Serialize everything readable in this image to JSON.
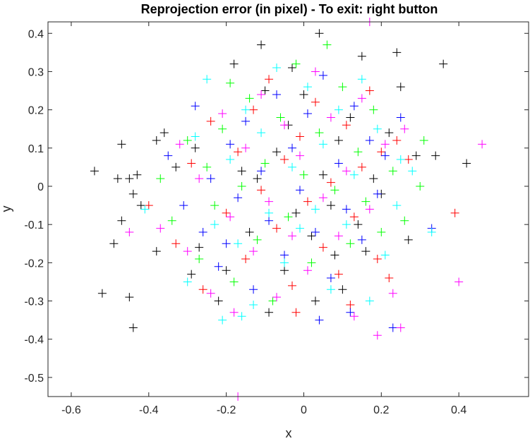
{
  "chart_data": {
    "type": "scatter",
    "title": "Reprojection error (in pixel) - To exit: right button",
    "xlabel": "x",
    "ylabel": "y",
    "xlim": [
      -0.66,
      0.58
    ],
    "ylim": [
      -0.55,
      0.43
    ],
    "xticks": [
      -0.6,
      -0.4,
      -0.2,
      0,
      0.2,
      0.4
    ],
    "yticks": [
      -0.5,
      -0.4,
      -0.3,
      -0.2,
      -0.1,
      0,
      0.1,
      0.2,
      0.3,
      0.4
    ],
    "xtick_labels": [
      "-0.6",
      "-0.4",
      "-0.2",
      "0",
      "0.2",
      "0.4"
    ],
    "ytick_labels": [
      "-0.5",
      "-0.4",
      "-0.3",
      "-0.2",
      "-0.1",
      "0",
      "0.1",
      "0.2",
      "0.3",
      "0.4"
    ],
    "grid": false,
    "marker": "+",
    "series": [
      {
        "color": "#000000",
        "points": [
          [
            -0.54,
            0.04
          ],
          [
            -0.52,
            -0.28
          ],
          [
            -0.49,
            -0.15
          ],
          [
            -0.48,
            0.02
          ],
          [
            -0.47,
            0.11
          ],
          [
            -0.47,
            -0.09
          ],
          [
            -0.45,
            0.02
          ],
          [
            -0.45,
            -0.29
          ],
          [
            -0.44,
            -0.37
          ],
          [
            -0.44,
            -0.02
          ],
          [
            -0.43,
            0.03
          ],
          [
            -0.42,
            -0.05
          ],
          [
            -0.38,
            0.12
          ],
          [
            -0.38,
            -0.17
          ],
          [
            -0.36,
            0.14
          ],
          [
            -0.33,
            0.05
          ],
          [
            -0.29,
            -0.23
          ],
          [
            -0.28,
            0.1
          ],
          [
            -0.27,
            -0.16
          ],
          [
            -0.22,
            -0.3
          ],
          [
            -0.2,
            -0.22
          ],
          [
            -0.18,
            0.32
          ],
          [
            -0.16,
            0.04
          ],
          [
            -0.14,
            -0.12
          ],
          [
            -0.11,
            0.37
          ],
          [
            -0.1,
            0.25
          ],
          [
            -0.09,
            -0.33
          ],
          [
            -0.07,
            0.09
          ],
          [
            -0.05,
            -0.22
          ],
          [
            -0.04,
            0.16
          ],
          [
            -0.02,
            -0.07
          ],
          [
            0.0,
            0.24
          ],
          [
            0.02,
            -0.13
          ],
          [
            0.04,
            0.4
          ],
          [
            0.05,
            0.03
          ],
          [
            0.07,
            -0.05
          ],
          [
            0.09,
            0.12
          ],
          [
            0.1,
            -0.27
          ],
          [
            0.12,
            0.18
          ],
          [
            0.14,
            -0.1
          ],
          [
            0.15,
            0.34
          ],
          [
            0.16,
            -0.17
          ],
          [
            0.18,
            0.02
          ],
          [
            0.2,
            -0.02
          ],
          [
            0.22,
            0.14
          ],
          [
            0.24,
            0.35
          ],
          [
            0.25,
            0.26
          ],
          [
            0.27,
            -0.14
          ],
          [
            0.29,
            0.08
          ],
          [
            0.34,
            0.08
          ],
          [
            0.36,
            0.32
          ],
          [
            0.42,
            0.06
          ],
          [
            0.03,
            -0.3
          ],
          [
            -0.03,
            0.31
          ],
          [
            0.08,
            -0.18
          ],
          [
            -0.12,
            0.02
          ]
        ]
      },
      {
        "color": "#ff0000",
        "points": [
          [
            -0.4,
            -0.05
          ],
          [
            -0.33,
            -0.15
          ],
          [
            -0.29,
            0.06
          ],
          [
            -0.26,
            -0.27
          ],
          [
            -0.24,
            0.17
          ],
          [
            -0.2,
            -0.07
          ],
          [
            -0.17,
            0.09
          ],
          [
            -0.15,
            -0.19
          ],
          [
            -0.13,
            0.2
          ],
          [
            -0.11,
            -0.01
          ],
          [
            -0.09,
            0.28
          ],
          [
            -0.07,
            -0.11
          ],
          [
            -0.05,
            0.07
          ],
          [
            -0.03,
            -0.26
          ],
          [
            -0.01,
            0.13
          ],
          [
            0.01,
            -0.04
          ],
          [
            0.03,
            0.22
          ],
          [
            0.05,
            -0.16
          ],
          [
            0.07,
            0.01
          ],
          [
            0.09,
            -0.23
          ],
          [
            0.11,
            0.16
          ],
          [
            0.13,
            -0.08
          ],
          [
            0.15,
            0.05
          ],
          [
            0.17,
            0.25
          ],
          [
            0.19,
            -0.19
          ],
          [
            0.22,
            -0.24
          ],
          [
            0.24,
            0.12
          ],
          [
            0.27,
            0.07
          ],
          [
            0.39,
            -0.07
          ],
          [
            0.2,
            0.09
          ],
          [
            -0.02,
            -0.33
          ],
          [
            0.12,
            -0.31
          ]
        ]
      },
      {
        "color": "#00ff00",
        "points": [
          [
            -0.37,
            0.02
          ],
          [
            -0.34,
            -0.09
          ],
          [
            -0.3,
            0.12
          ],
          [
            -0.27,
            -0.19
          ],
          [
            -0.25,
            0.05
          ],
          [
            -0.23,
            -0.05
          ],
          [
            -0.21,
            0.15
          ],
          [
            -0.18,
            -0.25
          ],
          [
            -0.16,
            0.0
          ],
          [
            -0.14,
            0.23
          ],
          [
            -0.12,
            -0.14
          ],
          [
            -0.1,
            0.06
          ],
          [
            -0.08,
            -0.3
          ],
          [
            -0.06,
            0.18
          ],
          [
            -0.04,
            -0.08
          ],
          [
            -0.02,
            0.32
          ],
          [
            0.0,
            0.03
          ],
          [
            0.02,
            -0.2
          ],
          [
            0.04,
            0.14
          ],
          [
            0.06,
            0.37
          ],
          [
            0.08,
            -0.01
          ],
          [
            0.1,
            0.26
          ],
          [
            0.12,
            -0.15
          ],
          [
            0.14,
            0.09
          ],
          [
            0.16,
            -0.04
          ],
          [
            0.18,
            0.2
          ],
          [
            0.2,
            -0.12
          ],
          [
            0.23,
            0.04
          ],
          [
            0.26,
            -0.09
          ],
          [
            0.3,
            0.0
          ],
          [
            0.31,
            0.12
          ],
          [
            -0.19,
            0.27
          ]
        ]
      },
      {
        "color": "#0000ff",
        "points": [
          [
            -0.35,
            0.08
          ],
          [
            -0.31,
            -0.05
          ],
          [
            -0.28,
            0.21
          ],
          [
            -0.26,
            -0.12
          ],
          [
            -0.24,
            0.02
          ],
          [
            -0.22,
            -0.21
          ],
          [
            -0.19,
            0.11
          ],
          [
            -0.17,
            -0.03
          ],
          [
            -0.15,
            0.17
          ],
          [
            -0.13,
            -0.27
          ],
          [
            -0.11,
            0.04
          ],
          [
            -0.09,
            -0.09
          ],
          [
            -0.07,
            0.24
          ],
          [
            -0.05,
            -0.18
          ],
          [
            -0.03,
            0.1
          ],
          [
            -0.01,
            -0.01
          ],
          [
            0.01,
            0.19
          ],
          [
            0.03,
            -0.12
          ],
          [
            0.05,
            0.29
          ],
          [
            0.07,
            -0.24
          ],
          [
            0.09,
            0.06
          ],
          [
            0.11,
            -0.06
          ],
          [
            0.13,
            0.21
          ],
          [
            0.15,
            -0.14
          ],
          [
            0.17,
            0.12
          ],
          [
            0.19,
            -0.02
          ],
          [
            0.21,
            0.08
          ],
          [
            0.23,
            -0.37
          ],
          [
            0.25,
            0.18
          ],
          [
            0.33,
            -0.11
          ],
          [
            0.04,
            -0.35
          ],
          [
            0.12,
            -0.33
          ],
          [
            -0.2,
            -0.15
          ]
        ]
      },
      {
        "color": "#00ffff",
        "points": [
          [
            -0.41,
            -0.06
          ],
          [
            -0.3,
            -0.25
          ],
          [
            -0.28,
            0.13
          ],
          [
            -0.25,
            0.28
          ],
          [
            -0.23,
            -0.1
          ],
          [
            -0.21,
            -0.35
          ],
          [
            -0.19,
            0.07
          ],
          [
            -0.17,
            -0.15
          ],
          [
            -0.15,
            0.2
          ],
          [
            -0.13,
            -0.31
          ],
          [
            -0.11,
            0.14
          ],
          [
            -0.09,
            -0.07
          ],
          [
            -0.07,
            0.31
          ],
          [
            -0.05,
            -0.2
          ],
          [
            -0.03,
            0.05
          ],
          [
            -0.01,
            -0.11
          ],
          [
            0.01,
            0.26
          ],
          [
            0.03,
            -0.06
          ],
          [
            0.05,
            0.11
          ],
          [
            0.07,
            -0.27
          ],
          [
            0.09,
            0.2
          ],
          [
            0.11,
            -0.1
          ],
          [
            0.13,
            0.03
          ],
          [
            0.15,
            0.28
          ],
          [
            0.17,
            -0.3
          ],
          [
            0.19,
            0.15
          ],
          [
            0.21,
            -0.18
          ],
          [
            0.24,
            -0.05
          ],
          [
            0.25,
            0.07
          ],
          [
            0.28,
            0.04
          ],
          [
            0.33,
            -0.12
          ],
          [
            -0.16,
            -0.34
          ]
        ]
      },
      {
        "color": "#ff00ff",
        "points": [
          [
            -0.45,
            -0.12
          ],
          [
            -0.37,
            -0.11
          ],
          [
            -0.32,
            0.11
          ],
          [
            -0.3,
            -0.17
          ],
          [
            -0.27,
            0.02
          ],
          [
            -0.24,
            -0.28
          ],
          [
            -0.21,
            0.19
          ],
          [
            -0.19,
            -0.08
          ],
          [
            -0.17,
            -0.55
          ],
          [
            -0.15,
            0.1
          ],
          [
            -0.13,
            -0.17
          ],
          [
            -0.11,
            0.24
          ],
          [
            -0.09,
            -0.04
          ],
          [
            -0.07,
            -0.29
          ],
          [
            -0.05,
            0.16
          ],
          [
            -0.03,
            -0.13
          ],
          [
            -0.01,
            0.08
          ],
          [
            0.01,
            -0.22
          ],
          [
            0.03,
            0.3
          ],
          [
            0.05,
            -0.03
          ],
          [
            0.07,
            0.18
          ],
          [
            0.09,
            -0.13
          ],
          [
            0.11,
            0.04
          ],
          [
            0.13,
            -0.34
          ],
          [
            0.15,
            0.23
          ],
          [
            0.17,
            -0.06
          ],
          [
            0.19,
            -0.39
          ],
          [
            0.21,
            0.11
          ],
          [
            0.23,
            -0.28
          ],
          [
            0.25,
            -0.37
          ],
          [
            0.26,
            0.15
          ],
          [
            0.4,
            -0.25
          ],
          [
            0.46,
            0.11
          ],
          [
            0.17,
            0.43
          ],
          [
            -0.18,
            -0.33
          ]
        ]
      }
    ]
  }
}
